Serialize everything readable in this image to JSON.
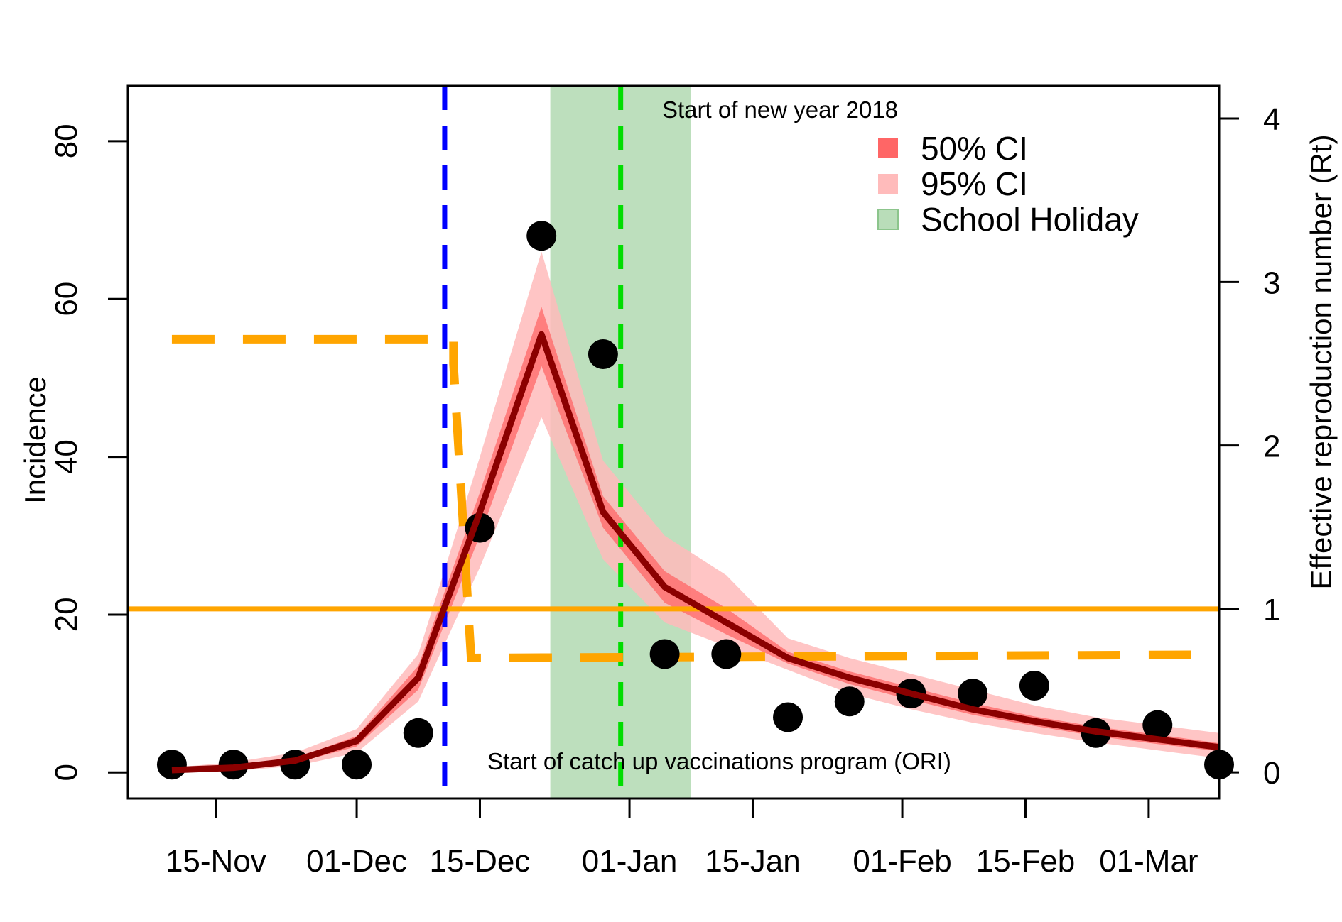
{
  "chart_data": {
    "type": "line",
    "xlabel": "",
    "ylabel": "Incidence",
    "ylabel_right": "Effective reproduction number (Rt)",
    "x_axis": {
      "type": "date",
      "range": [
        "2017-11-05",
        "2018-03-09"
      ],
      "tick_dates": [
        "2017-11-15",
        "2017-12-01",
        "2017-12-15",
        "2018-01-01",
        "2018-01-15",
        "2018-02-01",
        "2018-02-15",
        "2018-03-01"
      ],
      "tick_labels": [
        "15-Nov",
        "01-Dec",
        "15-Dec",
        "01-Jan",
        "15-Jan",
        "01-Feb",
        "15-Feb",
        "01-Mar"
      ]
    },
    "y_left": {
      "range": [
        -3.3,
        87
      ],
      "ticks": [
        0,
        20,
        40,
        60,
        80
      ]
    },
    "y_right": {
      "range": [
        -0.16,
        4.2
      ],
      "ticks": [
        0,
        1,
        2,
        3,
        4
      ]
    },
    "series": [
      {
        "name": "",
        "kind": "observed incidence (points)",
        "axis": "left",
        "color": "#000000",
        "x": [
          "2017-11-10",
          "2017-11-17",
          "2017-11-24",
          "2017-12-01",
          "2017-12-08",
          "2017-12-15",
          "2017-12-22",
          "2017-12-29",
          "2018-01-05",
          "2018-01-12",
          "2018-01-19",
          "2018-01-26",
          "2018-02-02",
          "2018-02-09",
          "2018-02-16",
          "2018-02-23",
          "2018-03-02",
          "2018-03-09"
        ],
        "y": [
          1,
          1,
          1,
          1,
          5,
          31,
          68,
          53,
          15,
          15,
          7,
          9,
          10,
          10,
          11,
          5,
          6,
          1
        ]
      },
      {
        "name": "",
        "kind": "model incidence (median)",
        "axis": "left",
        "color": "#8B0000",
        "x": [
          "2017-11-10",
          "2017-11-17",
          "2017-11-24",
          "2017-12-01",
          "2017-12-08",
          "2017-12-15",
          "2017-12-22",
          "2017-12-29",
          "2018-01-05",
          "2018-01-12",
          "2018-01-19",
          "2018-01-26",
          "2018-02-02",
          "2018-02-09",
          "2018-02-16",
          "2018-02-23",
          "2018-03-02",
          "2018-03-09"
        ],
        "y": [
          0.3,
          0.6,
          1.5,
          4,
          12,
          33,
          55.5,
          33,
          23.5,
          19,
          14.5,
          12,
          10,
          8,
          6.5,
          5.2,
          4.2,
          3.2
        ]
      },
      {
        "name": "50% CI",
        "kind": "band",
        "axis": "left",
        "color": "#FF6666",
        "x": [
          "2017-11-10",
          "2017-11-17",
          "2017-11-24",
          "2017-12-01",
          "2017-12-08",
          "2017-12-15",
          "2017-12-22",
          "2017-12-29",
          "2018-01-05",
          "2018-01-12",
          "2018-01-19",
          "2018-01-26",
          "2018-02-02",
          "2018-02-09",
          "2018-02-16",
          "2018-02-23",
          "2018-03-02",
          "2018-03-09"
        ],
        "lower": [
          0.2,
          0.5,
          1.2,
          3.3,
          10.5,
          30,
          51.5,
          31,
          21.5,
          17.5,
          13.8,
          11.2,
          9.2,
          7.3,
          5.9,
          4.6,
          3.6,
          2.7
        ],
        "upper": [
          0.4,
          0.8,
          1.8,
          4.6,
          13.5,
          35.5,
          59,
          35,
          25.5,
          20.8,
          15.3,
          12.8,
          10.8,
          8.8,
          7.1,
          5.8,
          4.8,
          3.7
        ]
      },
      {
        "name": "95% CI",
        "kind": "band",
        "axis": "left",
        "color": "#FFBBBB",
        "x": [
          "2017-11-10",
          "2017-11-17",
          "2017-11-24",
          "2017-12-01",
          "2017-12-08",
          "2017-12-15",
          "2017-12-22",
          "2017-12-29",
          "2018-01-05",
          "2018-01-12",
          "2018-01-19",
          "2018-01-26",
          "2018-02-02",
          "2018-02-09",
          "2018-02-16",
          "2018-02-23",
          "2018-03-02",
          "2018-03-09"
        ],
        "lower": [
          0,
          0.2,
          0.8,
          2.5,
          9,
          26,
          45,
          27,
          19,
          16,
          13,
          10,
          8,
          6.3,
          5,
          3.8,
          2.8,
          1.8
        ],
        "upper": [
          0.6,
          1.3,
          2.5,
          5.5,
          15,
          40,
          66,
          39.5,
          30,
          25,
          17,
          14.5,
          12.5,
          10.5,
          8.5,
          7,
          6,
          5
        ]
      },
      {
        "name": "",
        "kind": "Rt (dashed step)",
        "axis": "right",
        "color": "#FFA500",
        "x": [
          "2017-11-10",
          "2017-12-12",
          "2017-12-12",
          "2017-12-14",
          "2018-03-09"
        ],
        "y": [
          2.65,
          2.65,
          2.5,
          0.7,
          0.72
        ]
      },
      {
        "name": "",
        "kind": "Rt threshold",
        "axis": "right",
        "color": "#FFA500",
        "y": 1
      }
    ],
    "vertical_lines": [
      {
        "x": "2017-12-11",
        "color": "#0000FF",
        "style": "dashed",
        "label": "Start of catch up vaccinations program (ORI)"
      },
      {
        "x": "2017-12-31",
        "color": "#00DD00",
        "style": "dashed",
        "label": "Start of new year 2018"
      }
    ],
    "shaded_regions": [
      {
        "x0": "2017-12-23",
        "x1": "2018-01-08",
        "color": "#B9DDB9",
        "name": "School Holiday"
      }
    ],
    "legend": {
      "placement": "top-right",
      "entries": [
        {
          "label": "50% CI",
          "color": "#FF6666"
        },
        {
          "label": "95% CI",
          "color": "#FFBBBB"
        },
        {
          "label": "School Holiday",
          "color": "#B9DDB9"
        }
      ]
    },
    "grid": false
  }
}
